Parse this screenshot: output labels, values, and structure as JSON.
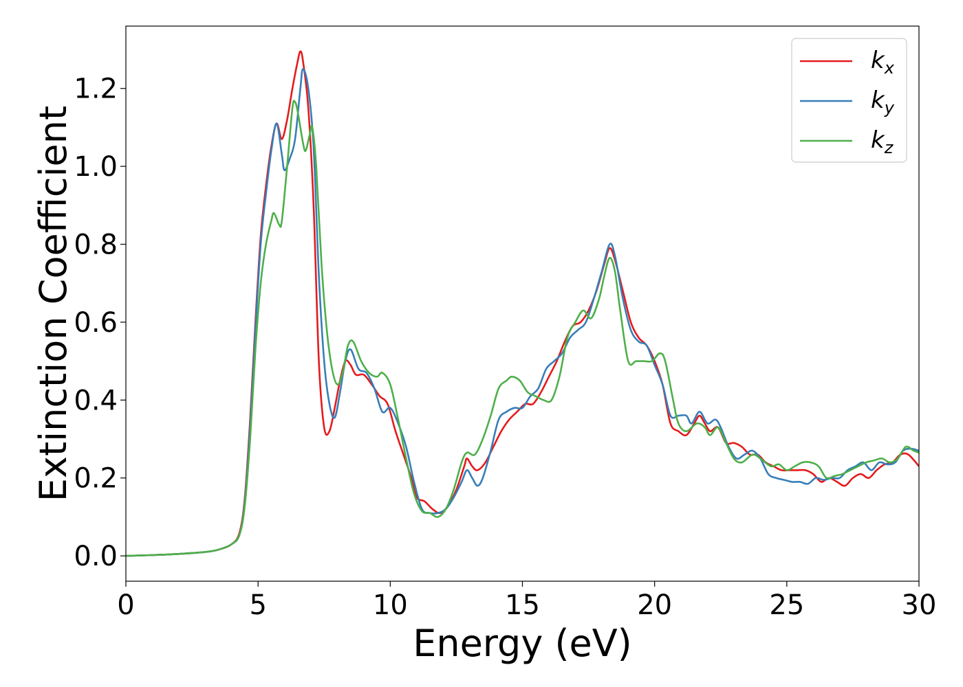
{
  "chart_data": {
    "type": "line",
    "xlabel": "Energy (eV)",
    "ylabel": "Extinction Coefficient",
    "xlim": [
      0,
      30
    ],
    "ylim": [
      -0.065,
      1.36
    ],
    "xticks": [
      0,
      5,
      10,
      15,
      20,
      25,
      30
    ],
    "xtick_labels": [
      "0",
      "5",
      "10",
      "15",
      "20",
      "25",
      "30"
    ],
    "yticks": [
      0.0,
      0.2,
      0.4,
      0.6,
      0.8,
      1.0,
      1.2
    ],
    "ytick_labels": [
      "0.0",
      "0.2",
      "0.4",
      "0.6",
      "0.8",
      "1.0",
      "1.2"
    ],
    "grid": false,
    "legend_position": "top-right",
    "series": [
      {
        "name": "kx",
        "label_main": "k",
        "label_sub": "x",
        "color": "#e41a1c",
        "points": [
          [
            0,
            0.0
          ],
          [
            1,
            0.002
          ],
          [
            2,
            0.005
          ],
          [
            3,
            0.01
          ],
          [
            3.5,
            0.016
          ],
          [
            4,
            0.03
          ],
          [
            4.3,
            0.06
          ],
          [
            4.5,
            0.15
          ],
          [
            4.7,
            0.35
          ],
          [
            4.9,
            0.6
          ],
          [
            5.1,
            0.82
          ],
          [
            5.3,
            0.95
          ],
          [
            5.5,
            1.05
          ],
          [
            5.7,
            1.11
          ],
          [
            5.9,
            1.07
          ],
          [
            6.1,
            1.12
          ],
          [
            6.3,
            1.2
          ],
          [
            6.5,
            1.27
          ],
          [
            6.6,
            1.295
          ],
          [
            6.7,
            1.27
          ],
          [
            6.9,
            1.15
          ],
          [
            7.1,
            0.9
          ],
          [
            7.3,
            0.5
          ],
          [
            7.5,
            0.33
          ],
          [
            7.7,
            0.32
          ],
          [
            7.9,
            0.38
          ],
          [
            8.1,
            0.45
          ],
          [
            8.3,
            0.5
          ],
          [
            8.5,
            0.49
          ],
          [
            8.7,
            0.465
          ],
          [
            9.0,
            0.465
          ],
          [
            9.3,
            0.44
          ],
          [
            9.6,
            0.41
          ],
          [
            9.9,
            0.39
          ],
          [
            10.2,
            0.32
          ],
          [
            10.5,
            0.26
          ],
          [
            10.8,
            0.2
          ],
          [
            11.0,
            0.15
          ],
          [
            11.3,
            0.14
          ],
          [
            11.6,
            0.12
          ],
          [
            11.9,
            0.11
          ],
          [
            12.2,
            0.13
          ],
          [
            12.5,
            0.17
          ],
          [
            12.8,
            0.23
          ],
          [
            12.9,
            0.25
          ],
          [
            13.1,
            0.23
          ],
          [
            13.3,
            0.22
          ],
          [
            13.6,
            0.24
          ],
          [
            13.9,
            0.28
          ],
          [
            14.2,
            0.32
          ],
          [
            14.5,
            0.35
          ],
          [
            14.8,
            0.37
          ],
          [
            15.1,
            0.39
          ],
          [
            15.4,
            0.39
          ],
          [
            15.7,
            0.42
          ],
          [
            16.0,
            0.46
          ],
          [
            16.3,
            0.5
          ],
          [
            16.6,
            0.55
          ],
          [
            16.9,
            0.59
          ],
          [
            17.2,
            0.6
          ],
          [
            17.5,
            0.63
          ],
          [
            17.8,
            0.68
          ],
          [
            18.1,
            0.75
          ],
          [
            18.3,
            0.79
          ],
          [
            18.5,
            0.76
          ],
          [
            18.8,
            0.68
          ],
          [
            19.1,
            0.6
          ],
          [
            19.4,
            0.56
          ],
          [
            19.7,
            0.54
          ],
          [
            20.0,
            0.5
          ],
          [
            20.3,
            0.44
          ],
          [
            20.6,
            0.34
          ],
          [
            20.9,
            0.32
          ],
          [
            21.2,
            0.31
          ],
          [
            21.5,
            0.34
          ],
          [
            21.7,
            0.36
          ],
          [
            21.9,
            0.34
          ],
          [
            22.1,
            0.32
          ],
          [
            22.4,
            0.33
          ],
          [
            22.7,
            0.29
          ],
          [
            23.0,
            0.29
          ],
          [
            23.3,
            0.28
          ],
          [
            23.6,
            0.26
          ],
          [
            23.9,
            0.26
          ],
          [
            24.2,
            0.24
          ],
          [
            24.5,
            0.23
          ],
          [
            24.8,
            0.22
          ],
          [
            25.1,
            0.22
          ],
          [
            25.4,
            0.22
          ],
          [
            25.7,
            0.22
          ],
          [
            26.0,
            0.21
          ],
          [
            26.3,
            0.19
          ],
          [
            26.6,
            0.2
          ],
          [
            26.9,
            0.19
          ],
          [
            27.2,
            0.18
          ],
          [
            27.5,
            0.2
          ],
          [
            27.8,
            0.21
          ],
          [
            28.1,
            0.2
          ],
          [
            28.4,
            0.22
          ],
          [
            28.7,
            0.235
          ],
          [
            29.0,
            0.24
          ],
          [
            29.3,
            0.26
          ],
          [
            29.6,
            0.26
          ],
          [
            30.0,
            0.23
          ]
        ]
      },
      {
        "name": "ky",
        "label_main": "k",
        "label_sub": "y",
        "color": "#377eb8",
        "points": [
          [
            0,
            0.0
          ],
          [
            1,
            0.002
          ],
          [
            2,
            0.005
          ],
          [
            3,
            0.01
          ],
          [
            3.5,
            0.016
          ],
          [
            4,
            0.03
          ],
          [
            4.3,
            0.055
          ],
          [
            4.5,
            0.14
          ],
          [
            4.7,
            0.33
          ],
          [
            4.9,
            0.58
          ],
          [
            5.1,
            0.8
          ],
          [
            5.3,
            0.93
          ],
          [
            5.5,
            1.04
          ],
          [
            5.7,
            1.11
          ],
          [
            5.9,
            1.03
          ],
          [
            6.0,
            0.99
          ],
          [
            6.2,
            1.02
          ],
          [
            6.4,
            1.07
          ],
          [
            6.6,
            1.2
          ],
          [
            6.7,
            1.25
          ],
          [
            6.9,
            1.2
          ],
          [
            7.1,
            1.05
          ],
          [
            7.3,
            0.72
          ],
          [
            7.5,
            0.5
          ],
          [
            7.7,
            0.39
          ],
          [
            7.9,
            0.355
          ],
          [
            8.1,
            0.42
          ],
          [
            8.3,
            0.5
          ],
          [
            8.5,
            0.53
          ],
          [
            8.8,
            0.48
          ],
          [
            9.1,
            0.47
          ],
          [
            9.4,
            0.43
          ],
          [
            9.7,
            0.37
          ],
          [
            10.0,
            0.38
          ],
          [
            10.3,
            0.34
          ],
          [
            10.6,
            0.28
          ],
          [
            10.9,
            0.19
          ],
          [
            11.2,
            0.12
          ],
          [
            11.5,
            0.11
          ],
          [
            11.8,
            0.11
          ],
          [
            12.1,
            0.12
          ],
          [
            12.4,
            0.15
          ],
          [
            12.7,
            0.19
          ],
          [
            12.9,
            0.22
          ],
          [
            13.1,
            0.2
          ],
          [
            13.3,
            0.18
          ],
          [
            13.5,
            0.2
          ],
          [
            13.8,
            0.27
          ],
          [
            14.1,
            0.35
          ],
          [
            14.4,
            0.37
          ],
          [
            14.7,
            0.38
          ],
          [
            15.0,
            0.38
          ],
          [
            15.3,
            0.41
          ],
          [
            15.6,
            0.43
          ],
          [
            15.9,
            0.48
          ],
          [
            16.2,
            0.5
          ],
          [
            16.5,
            0.52
          ],
          [
            16.8,
            0.56
          ],
          [
            17.1,
            0.58
          ],
          [
            17.4,
            0.6
          ],
          [
            17.7,
            0.66
          ],
          [
            18.0,
            0.73
          ],
          [
            18.3,
            0.8
          ],
          [
            18.5,
            0.77
          ],
          [
            18.8,
            0.66
          ],
          [
            19.1,
            0.58
          ],
          [
            19.4,
            0.55
          ],
          [
            19.7,
            0.54
          ],
          [
            20.0,
            0.49
          ],
          [
            20.3,
            0.44
          ],
          [
            20.6,
            0.36
          ],
          [
            20.9,
            0.36
          ],
          [
            21.2,
            0.36
          ],
          [
            21.4,
            0.34
          ],
          [
            21.7,
            0.37
          ],
          [
            22.0,
            0.34
          ],
          [
            22.3,
            0.35
          ],
          [
            22.5,
            0.33
          ],
          [
            22.8,
            0.28
          ],
          [
            23.1,
            0.25
          ],
          [
            23.4,
            0.26
          ],
          [
            23.7,
            0.27
          ],
          [
            24.0,
            0.25
          ],
          [
            24.3,
            0.21
          ],
          [
            24.6,
            0.2
          ],
          [
            24.9,
            0.195
          ],
          [
            25.2,
            0.19
          ],
          [
            25.5,
            0.19
          ],
          [
            25.8,
            0.185
          ],
          [
            26.1,
            0.2
          ],
          [
            26.4,
            0.195
          ],
          [
            26.7,
            0.2
          ],
          [
            27.0,
            0.2
          ],
          [
            27.3,
            0.22
          ],
          [
            27.6,
            0.23
          ],
          [
            27.9,
            0.24
          ],
          [
            28.2,
            0.22
          ],
          [
            28.5,
            0.24
          ],
          [
            28.8,
            0.235
          ],
          [
            29.1,
            0.24
          ],
          [
            29.4,
            0.27
          ],
          [
            29.7,
            0.275
          ],
          [
            30.0,
            0.27
          ]
        ]
      },
      {
        "name": "kz",
        "label_main": "k",
        "label_sub": "z",
        "color": "#4daf4a",
        "points": [
          [
            0,
            0.0
          ],
          [
            1,
            0.002
          ],
          [
            2,
            0.005
          ],
          [
            3,
            0.01
          ],
          [
            3.5,
            0.016
          ],
          [
            4,
            0.03
          ],
          [
            4.3,
            0.055
          ],
          [
            4.5,
            0.13
          ],
          [
            4.7,
            0.3
          ],
          [
            4.9,
            0.53
          ],
          [
            5.1,
            0.7
          ],
          [
            5.3,
            0.8
          ],
          [
            5.5,
            0.86
          ],
          [
            5.6,
            0.88
          ],
          [
            5.8,
            0.85
          ],
          [
            5.9,
            0.86
          ],
          [
            6.1,
            1.0
          ],
          [
            6.3,
            1.15
          ],
          [
            6.4,
            1.165
          ],
          [
            6.5,
            1.14
          ],
          [
            6.7,
            1.06
          ],
          [
            6.8,
            1.04
          ],
          [
            6.95,
            1.08
          ],
          [
            7.05,
            1.1
          ],
          [
            7.2,
            1.0
          ],
          [
            7.4,
            0.75
          ],
          [
            7.6,
            0.58
          ],
          [
            7.8,
            0.48
          ],
          [
            8.0,
            0.44
          ],
          [
            8.2,
            0.47
          ],
          [
            8.4,
            0.54
          ],
          [
            8.6,
            0.55
          ],
          [
            8.9,
            0.5
          ],
          [
            9.2,
            0.47
          ],
          [
            9.5,
            0.46
          ],
          [
            9.7,
            0.47
          ],
          [
            10.0,
            0.44
          ],
          [
            10.3,
            0.35
          ],
          [
            10.6,
            0.25
          ],
          [
            10.9,
            0.16
          ],
          [
            11.2,
            0.115
          ],
          [
            11.5,
            0.11
          ],
          [
            11.8,
            0.1
          ],
          [
            12.1,
            0.12
          ],
          [
            12.4,
            0.17
          ],
          [
            12.7,
            0.24
          ],
          [
            12.9,
            0.265
          ],
          [
            13.2,
            0.26
          ],
          [
            13.5,
            0.3
          ],
          [
            13.8,
            0.36
          ],
          [
            14.1,
            0.43
          ],
          [
            14.4,
            0.45
          ],
          [
            14.6,
            0.46
          ],
          [
            14.9,
            0.45
          ],
          [
            15.2,
            0.42
          ],
          [
            15.5,
            0.41
          ],
          [
            15.8,
            0.4
          ],
          [
            16.1,
            0.4
          ],
          [
            16.4,
            0.46
          ],
          [
            16.7,
            0.56
          ],
          [
            17.0,
            0.6
          ],
          [
            17.3,
            0.63
          ],
          [
            17.6,
            0.61
          ],
          [
            17.9,
            0.66
          ],
          [
            18.1,
            0.72
          ],
          [
            18.3,
            0.765
          ],
          [
            18.5,
            0.73
          ],
          [
            18.7,
            0.63
          ],
          [
            19.0,
            0.5
          ],
          [
            19.3,
            0.5
          ],
          [
            19.6,
            0.5
          ],
          [
            19.9,
            0.5
          ],
          [
            20.2,
            0.52
          ],
          [
            20.4,
            0.5
          ],
          [
            20.7,
            0.4
          ],
          [
            20.9,
            0.34
          ],
          [
            21.2,
            0.32
          ],
          [
            21.6,
            0.34
          ],
          [
            21.9,
            0.33
          ],
          [
            22.1,
            0.31
          ],
          [
            22.4,
            0.33
          ],
          [
            22.7,
            0.29
          ],
          [
            23.0,
            0.25
          ],
          [
            23.3,
            0.24
          ],
          [
            23.7,
            0.26
          ],
          [
            24.0,
            0.25
          ],
          [
            24.4,
            0.23
          ],
          [
            24.7,
            0.235
          ],
          [
            25.0,
            0.22
          ],
          [
            25.3,
            0.23
          ],
          [
            25.6,
            0.24
          ],
          [
            25.9,
            0.24
          ],
          [
            26.2,
            0.23
          ],
          [
            26.5,
            0.2
          ],
          [
            26.8,
            0.205
          ],
          [
            27.1,
            0.21
          ],
          [
            27.4,
            0.22
          ],
          [
            27.7,
            0.23
          ],
          [
            28.0,
            0.24
          ],
          [
            28.3,
            0.245
          ],
          [
            28.6,
            0.25
          ],
          [
            28.9,
            0.24
          ],
          [
            29.2,
            0.25
          ],
          [
            29.5,
            0.28
          ],
          [
            29.8,
            0.27
          ],
          [
            30.0,
            0.265
          ]
        ]
      }
    ]
  }
}
